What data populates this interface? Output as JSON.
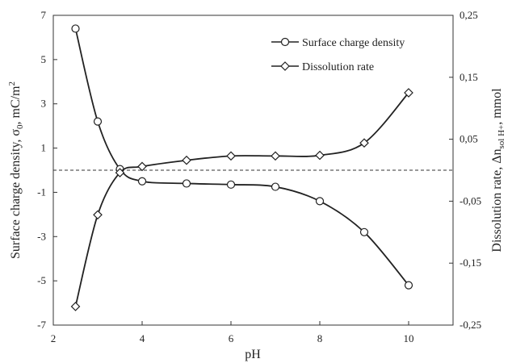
{
  "chart_data": {
    "type": "line",
    "xlabel": "pH",
    "ylabel_left": {
      "text": "Surface charge density, σ",
      "sub": "0",
      "unit_text": ", mC/m",
      "sup": "2"
    },
    "ylabel_right": {
      "text": "Dissolution rate, Δn",
      "sub": "sol H+",
      "unit_text": ", mmol"
    },
    "xlim": [
      2,
      11
    ],
    "ylim_left": [
      -7,
      7
    ],
    "ylim_right": [
      -0.25,
      0.25
    ],
    "x_ticks": [
      {
        "value": 2,
        "label": "2"
      },
      {
        "value": 4,
        "label": "4"
      },
      {
        "value": 6,
        "label": "6"
      },
      {
        "value": 8,
        "label": "8"
      },
      {
        "value": 10,
        "label": "10"
      }
    ],
    "y_left_ticks": [
      {
        "value": 7,
        "label": "7"
      },
      {
        "value": 5,
        "label": "5"
      },
      {
        "value": 3,
        "label": "3"
      },
      {
        "value": 1,
        "label": "1"
      },
      {
        "value": -1,
        "label": "-1"
      },
      {
        "value": -3,
        "label": "-3"
      },
      {
        "value": -5,
        "label": "-5"
      },
      {
        "value": -7,
        "label": "-7"
      }
    ],
    "y_right_ticks": [
      {
        "value": 0.25,
        "label": "0,25"
      },
      {
        "value": 0.15,
        "label": "0,15"
      },
      {
        "value": 0.05,
        "label": "0,05"
      },
      {
        "value": -0.05,
        "label": "-0,05"
      },
      {
        "value": -0.15,
        "label": "-0,15"
      },
      {
        "value": -0.25,
        "label": "-0,25"
      }
    ],
    "reference_line": {
      "axis": "y_left",
      "value": 0.0,
      "style": "dashed"
    },
    "legend_position": "top-right",
    "series": [
      {
        "name": "Surface charge density",
        "marker": "circle",
        "axis": "left",
        "x": [
          2.5,
          3,
          3.5,
          4,
          5,
          6,
          7,
          8,
          9,
          10
        ],
        "y": [
          6.4,
          2.2,
          0.05,
          -0.5,
          -0.6,
          -0.65,
          -0.75,
          -1.4,
          -2.8,
          -5.2
        ]
      },
      {
        "name": "Dissolution rate",
        "marker": "diamond",
        "axis": "right",
        "x": [
          2.5,
          3,
          3.5,
          4,
          5,
          6,
          7,
          8,
          9,
          10
        ],
        "y": [
          -0.22,
          -0.072,
          -0.004,
          0.006,
          0.016,
          0.023,
          0.023,
          0.024,
          0.044,
          0.125
        ]
      }
    ]
  }
}
